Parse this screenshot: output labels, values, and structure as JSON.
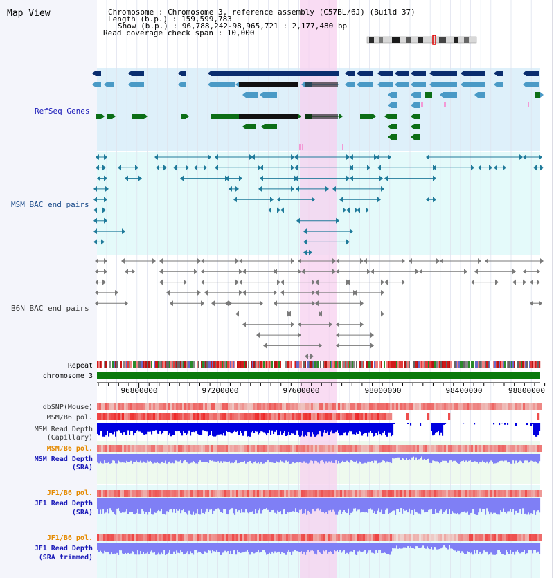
{
  "header": {
    "view_title": "Map View",
    "info_lines": [
      "Chromosome    : Chromosome 3, reference assembly (C57BL/6J) (Build 37)",
      "Length (b.p.) : 159,599,783",
      "Show (b.p.) : 96,788,242-98,965,721 : 2,177,480 bp",
      "Read coverage check span : 10,000"
    ]
  },
  "tracks": {
    "refseq": "RefSeq Genes",
    "msm_bac": "MSM BAC end pairs",
    "b6n_bac": "B6N BAC end pairs",
    "repeat": "Repeat",
    "chromosome": "chromosome 3",
    "dbsnp": "dbSNP(Mouse)",
    "msm_b6_pol_1": "MSM/B6 pol.",
    "msm_read_depth_cap_1": "MSM Read Depth",
    "msm_read_depth_cap_2": "(Capillary)",
    "msm_b6_pol_2": "MSM/B6 pol.",
    "msm_read_depth_sra_1": "MSM Read Depth",
    "msm_read_depth_sra_2": "(SRA)",
    "jf1_b6_pol_1": "JF1/B6 pol.",
    "jf1_read_depth_sra_1": "JF1 Read Depth",
    "jf1_read_depth_sra_2": "(SRA)",
    "jf1_b6_pol_2": "JF1/B6 pol.",
    "jf1_read_depth_trim_1": "JF1 Read Depth",
    "jf1_read_depth_trim_2": "(SRA trimmed)"
  },
  "axis": {
    "ticks": [
      "96800000",
      "97200000",
      "97600000",
      "98000000",
      "98400000",
      "98800000"
    ]
  },
  "colors": {
    "refseq_bg": "#def0fa",
    "bac_bg": "#e4fafa",
    "highlight": "#f7d8f2",
    "gene_dark": "#0a2d6e",
    "gene_mid": "#4a9ac6",
    "gene_green": "#0c6e16",
    "depth_dark": "#0000e0",
    "depth_light": "#7f7ff5",
    "pol_red": "#e83a3a",
    "label_orange": "#e48a00",
    "label_blue": "#1a1ab8"
  }
}
